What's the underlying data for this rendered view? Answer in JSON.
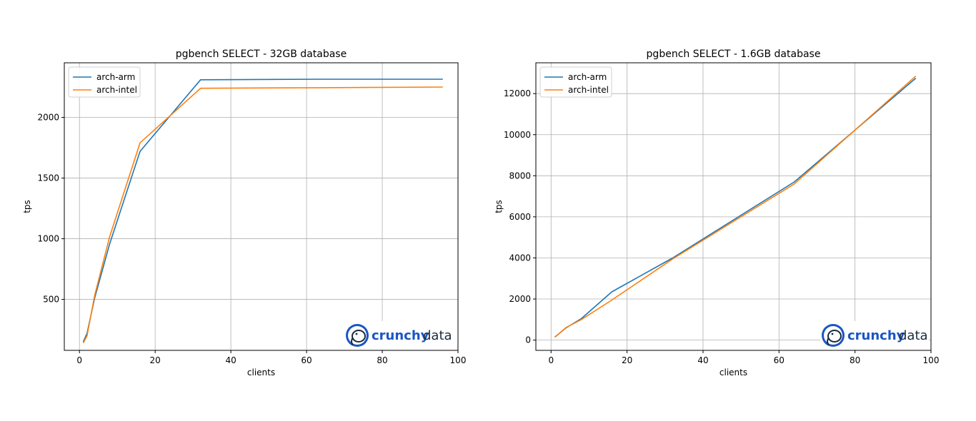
{
  "colors": {
    "arm": "#1f77b4",
    "intel": "#ff7f0e",
    "logo_blue": "#1a56c4",
    "logo_dark": "#1b2a3a"
  },
  "logo": {
    "word1": "crunchy",
    "word2": "data",
    "icon": "elephant-icon"
  },
  "chart_data": [
    {
      "type": "line",
      "title": "pgbench SELECT - 32GB database",
      "xlabel": "clients",
      "ylabel": "tps",
      "xlim": [
        -4,
        100
      ],
      "ylim": [
        80,
        2450
      ],
      "xticks": [
        0,
        20,
        40,
        60,
        80,
        100
      ],
      "yticks": [
        500,
        1000,
        1500,
        2000
      ],
      "grid": true,
      "legend": "upper left",
      "series": [
        {
          "name": "arch-arm",
          "color": "#1f77b4",
          "x": [
            1,
            2,
            4,
            8,
            16,
            32,
            64,
            96
          ],
          "y": [
            150,
            220,
            510,
            960,
            1720,
            2310,
            2315,
            2315
          ]
        },
        {
          "name": "arch-intel",
          "color": "#ff7f0e",
          "x": [
            1,
            2,
            4,
            8,
            16,
            32,
            64,
            96
          ],
          "y": [
            140,
            200,
            530,
            1020,
            1790,
            2240,
            2245,
            2250
          ]
        }
      ]
    },
    {
      "type": "line",
      "title": "pgbench SELECT - 1.6GB database",
      "xlabel": "clients",
      "ylabel": "tps",
      "xlim": [
        -4,
        100
      ],
      "ylim": [
        -500,
        13500
      ],
      "xticks": [
        0,
        20,
        40,
        60,
        80,
        100
      ],
      "yticks": [
        0,
        2000,
        4000,
        6000,
        8000,
        10000,
        12000
      ],
      "grid": true,
      "legend": "upper left",
      "series": [
        {
          "name": "arch-arm",
          "color": "#1f77b4",
          "x": [
            1,
            2,
            4,
            8,
            16,
            32,
            64,
            96
          ],
          "y": [
            150,
            300,
            600,
            1050,
            2350,
            4000,
            7700,
            12750
          ]
        },
        {
          "name": "arch-intel",
          "color": "#ff7f0e",
          "x": [
            1,
            2,
            4,
            8,
            16,
            32,
            64,
            96
          ],
          "y": [
            140,
            300,
            620,
            1000,
            1950,
            3950,
            7600,
            12850
          ]
        }
      ]
    }
  ]
}
